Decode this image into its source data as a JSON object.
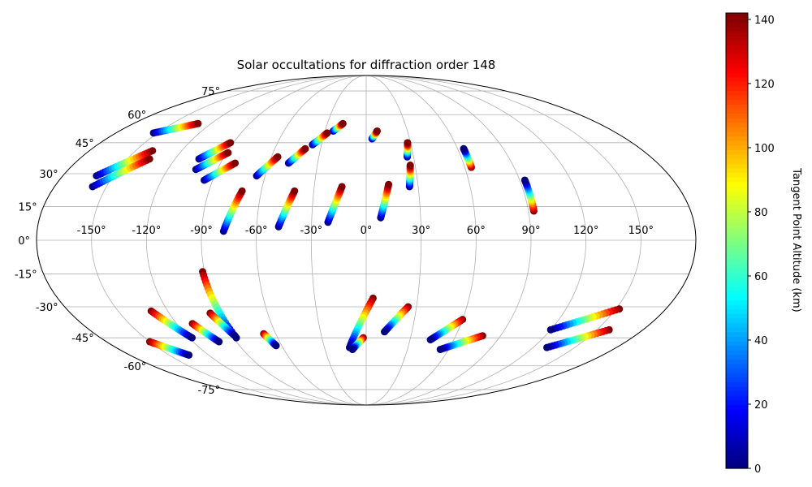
{
  "chart_data": {
    "type": "scatter",
    "projection": "mollweide",
    "title": "Solar occultations for diffraction order 148",
    "xlabel": "",
    "ylabel": "",
    "grid": true,
    "longitude_ticks": [
      "-150°",
      "-120°",
      "-90°",
      "-60°",
      "-30°",
      "0°",
      "30°",
      "60°",
      "90°",
      "120°",
      "150°"
    ],
    "latitude_ticks": [
      "75°",
      "60°",
      "45°",
      "30°",
      "15°",
      "0°",
      "-15°",
      "-30°",
      "-45°",
      "-60°",
      "-75°"
    ],
    "colorbar": {
      "label": "Tangent Point Altitude (km)",
      "colormap": "jet",
      "range": [
        0,
        142
      ],
      "ticks": [
        "0",
        "20",
        "40",
        "60",
        "80",
        "100",
        "120",
        "140"
      ]
    },
    "series": [
      {
        "tracks": [
          {
            "lon": -160,
            "lat0": 29,
            "lon1": -139,
            "lat1": 41,
            "alt": "rising"
          },
          {
            "lon": -158,
            "lat0": 24,
            "lon1": -136,
            "lat1": 37,
            "alt": "rising"
          },
          {
            "lon": -153,
            "lat0": 50,
            "lon1": -130,
            "lat1": 55,
            "alt": "rising"
          },
          {
            "lon": -105,
            "lat0": 37,
            "lon1": -92,
            "lat1": 45,
            "alt": "rising"
          },
          {
            "lon": -103,
            "lat0": 32,
            "lon1": -89,
            "lat1": 40,
            "alt": "rising"
          },
          {
            "lon": -95,
            "lat0": 27,
            "lon1": -81,
            "lat1": 35,
            "alt": "rising"
          },
          {
            "lon": -78,
            "lat0": 4,
            "lon1": -71,
            "lat1": 22,
            "alt": "rising"
          },
          {
            "lon": -65,
            "lat0": 29,
            "lon1": -56,
            "lat1": 38,
            "alt": "rising"
          },
          {
            "lon": -48,
            "lat0": 6,
            "lon1": -41,
            "lat1": 22,
            "alt": "rising"
          },
          {
            "lon": -48,
            "lat0": 35,
            "lon1": -40,
            "lat1": 42,
            "alt": "rising"
          },
          {
            "lon": -21,
            "lat0": 8,
            "lon1": -14,
            "lat1": 24,
            "alt": "rising"
          },
          {
            "lon": -36,
            "lat0": 44,
            "lon1": -28,
            "lat1": 50,
            "alt": "rising"
          },
          {
            "lon": -24,
            "lat0": 51,
            "lon1": -18,
            "lat1": 55,
            "alt": "rising"
          },
          {
            "lon": 8,
            "lat0": 10,
            "lon1": 13,
            "lat1": 25,
            "alt": "rising"
          },
          {
            "lon": 4,
            "lat0": 47,
            "lon1": 8,
            "lat1": 51,
            "alt": "rising"
          },
          {
            "lon": 25,
            "lat0": 24,
            "lon1": 27,
            "lat1": 34,
            "alt": "rising"
          },
          {
            "lon": 26,
            "lat0": 38,
            "lon1": 28,
            "lat1": 45,
            "alt": "rising"
          },
          {
            "lon": 64,
            "lat0": 33,
            "lon1": 64,
            "lat1": 42,
            "alt": "falling"
          },
          {
            "lon": 93,
            "lat0": 13,
            "lon1": 93,
            "lat1": 27,
            "alt": "falling"
          },
          {
            "lon": -91,
            "lat0": -14,
            "lon1": -88,
            "lat1": -45,
            "alt": "falling"
          },
          {
            "lon": -130,
            "lat0": -32,
            "lon1": -118,
            "lat1": -45,
            "alt": "falling"
          },
          {
            "lon": -150,
            "lat0": -47,
            "lon1": -135,
            "lat1": -54,
            "alt": "falling"
          },
          {
            "lon": -110,
            "lat0": -38,
            "lon1": -102,
            "lat1": -47,
            "alt": "falling"
          },
          {
            "lon": -95,
            "lat0": -33,
            "lon1": -88,
            "lat1": -44,
            "alt": "falling"
          },
          {
            "lon": -68,
            "lat0": -43,
            "lon1": -64,
            "lat1": -49,
            "alt": "falling"
          },
          {
            "lon": 4,
            "lat0": -26,
            "lon1": -12,
            "lat1": -50,
            "alt": "falling"
          },
          {
            "lon": -2,
            "lat0": -45,
            "lon1": -10,
            "lat1": -51,
            "alt": "falling"
          },
          {
            "lon": 25,
            "lat0": -30,
            "lon1": 12,
            "lat1": -42,
            "alt": "falling"
          },
          {
            "lon": 60,
            "lat0": -36,
            "lon1": 44,
            "lat1": -46,
            "alt": "falling"
          },
          {
            "lon": 78,
            "lat0": -44,
            "lon1": 54,
            "lat1": -51,
            "alt": "falling"
          },
          {
            "lon": 152,
            "lat0": -31,
            "lon1": 120,
            "lat1": -41,
            "alt": "falling"
          },
          {
            "lon": 158,
            "lat0": -41,
            "lon1": 130,
            "lat1": -50,
            "alt": "falling"
          }
        ]
      }
    ]
  }
}
